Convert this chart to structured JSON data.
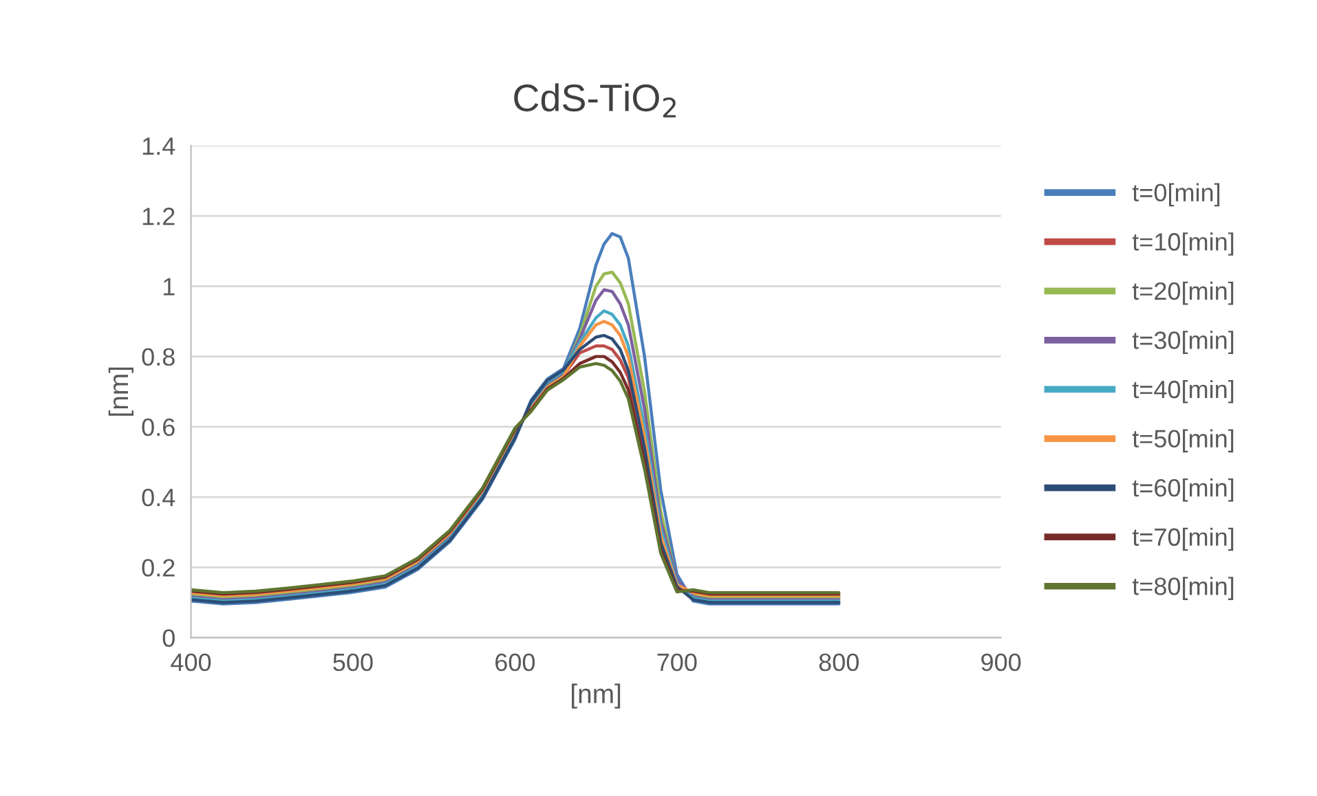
{
  "chart_data": {
    "type": "line",
    "title": "CdS-TiO$_{2}$",
    "xlabel": "[nm]",
    "ylabel": "[nm]",
    "x": [
      400,
      420,
      440,
      460,
      480,
      500,
      520,
      540,
      560,
      580,
      600,
      610,
      620,
      630,
      640,
      650,
      655,
      660,
      665,
      670,
      680,
      690,
      700,
      710,
      720,
      740,
      760,
      780,
      800
    ],
    "xlim": [
      400,
      900
    ],
    "xticks": [
      400,
      500,
      600,
      700,
      800,
      900
    ],
    "ylim": [
      0,
      1.4
    ],
    "yticks": [
      0,
      {
        "value": 0.2,
        "label": "0.2"
      },
      {
        "value": 0.4,
        "label": "0.4"
      },
      {
        "value": 0.6,
        "label": "0.6"
      },
      {
        "value": 0.8,
        "label": "0.8"
      },
      1,
      {
        "value": 1.2,
        "label": "1.2"
      },
      {
        "value": 1.4,
        "label": "1.4"
      }
    ],
    "grid": "y",
    "legend": "right",
    "line_style": "solid",
    "marker": "none",
    "series": [
      {
        "name": "t=0[min]",
        "color": "#4a7ebb",
        "values": [
          0.104,
          0.096,
          0.1,
          0.109,
          0.119,
          0.129,
          0.144,
          0.194,
          0.274,
          0.394,
          0.564,
          0.676,
          0.736,
          0.766,
          0.88,
          1.06,
          1.12,
          1.15,
          1.14,
          1.08,
          0.8,
          0.42,
          0.18,
          0.104,
          0.096,
          0.096,
          0.096,
          0.096,
          0.096
        ]
      },
      {
        "name": "t=10[min]",
        "color": "#be4b48",
        "values": [
          0.124,
          0.116,
          0.12,
          0.129,
          0.139,
          0.149,
          0.164,
          0.214,
          0.294,
          0.414,
          0.584,
          0.656,
          0.716,
          0.746,
          0.81,
          0.83,
          0.83,
          0.82,
          0.79,
          0.74,
          0.52,
          0.26,
          0.14,
          0.124,
          0.116,
          0.116,
          0.116,
          0.116,
          0.116
        ]
      },
      {
        "name": "t=20[min]",
        "color": "#98b954",
        "values": [
          0.12,
          0.112,
          0.116,
          0.125,
          0.135,
          0.145,
          0.16,
          0.21,
          0.29,
          0.41,
          0.58,
          0.66,
          0.72,
          0.75,
          0.86,
          1.0,
          1.035,
          1.04,
          1.01,
          0.95,
          0.7,
          0.36,
          0.16,
          0.12,
          0.112,
          0.112,
          0.112,
          0.112,
          0.112
        ]
      },
      {
        "name": "t=30[min]",
        "color": "#7d60a0",
        "values": [
          0.116,
          0.108,
          0.112,
          0.121,
          0.131,
          0.141,
          0.156,
          0.206,
          0.286,
          0.406,
          0.576,
          0.664,
          0.724,
          0.754,
          0.85,
          0.96,
          0.99,
          0.985,
          0.95,
          0.89,
          0.65,
          0.33,
          0.165,
          0.116,
          0.108,
          0.108,
          0.108,
          0.108,
          0.108
        ]
      },
      {
        "name": "t=40[min]",
        "color": "#46aac5",
        "values": [
          0.112,
          0.104,
          0.108,
          0.117,
          0.127,
          0.137,
          0.152,
          0.202,
          0.282,
          0.402,
          0.572,
          0.668,
          0.728,
          0.758,
          0.84,
          0.91,
          0.93,
          0.92,
          0.89,
          0.83,
          0.6,
          0.31,
          0.155,
          0.112,
          0.104,
          0.104,
          0.104,
          0.104,
          0.104
        ]
      },
      {
        "name": "t=50[min]",
        "color": "#f69545",
        "values": [
          0.128,
          0.12,
          0.124,
          0.133,
          0.143,
          0.153,
          0.168,
          0.218,
          0.298,
          0.418,
          0.588,
          0.652,
          0.712,
          0.742,
          0.83,
          0.89,
          0.9,
          0.89,
          0.86,
          0.8,
          0.57,
          0.29,
          0.15,
          0.128,
          0.12,
          0.12,
          0.12,
          0.12,
          0.12
        ]
      },
      {
        "name": "t=60[min]",
        "color": "#2c4d75",
        "values": [
          0.108,
          0.1,
          0.104,
          0.113,
          0.123,
          0.133,
          0.148,
          0.198,
          0.278,
          0.398,
          0.568,
          0.672,
          0.732,
          0.762,
          0.82,
          0.855,
          0.86,
          0.85,
          0.82,
          0.76,
          0.54,
          0.27,
          0.145,
          0.108,
          0.1,
          0.1,
          0.1,
          0.1,
          0.1
        ]
      },
      {
        "name": "t=70[min]",
        "color": "#772c2a",
        "values": [
          0.132,
          0.124,
          0.128,
          0.137,
          0.147,
          0.157,
          0.172,
          0.222,
          0.302,
          0.422,
          0.592,
          0.648,
          0.708,
          0.738,
          0.78,
          0.8,
          0.8,
          0.785,
          0.755,
          0.705,
          0.5,
          0.25,
          0.135,
          0.132,
          0.124,
          0.124,
          0.124,
          0.124,
          0.124
        ]
      },
      {
        "name": "t=80[min]",
        "color": "#5f7530",
        "values": [
          0.136,
          0.128,
          0.132,
          0.141,
          0.151,
          0.161,
          0.176,
          0.226,
          0.306,
          0.426,
          0.596,
          0.644,
          0.704,
          0.734,
          0.77,
          0.78,
          0.775,
          0.76,
          0.73,
          0.68,
          0.48,
          0.24,
          0.13,
          0.136,
          0.128,
          0.128,
          0.128,
          0.128,
          0.128
        ]
      }
    ]
  }
}
